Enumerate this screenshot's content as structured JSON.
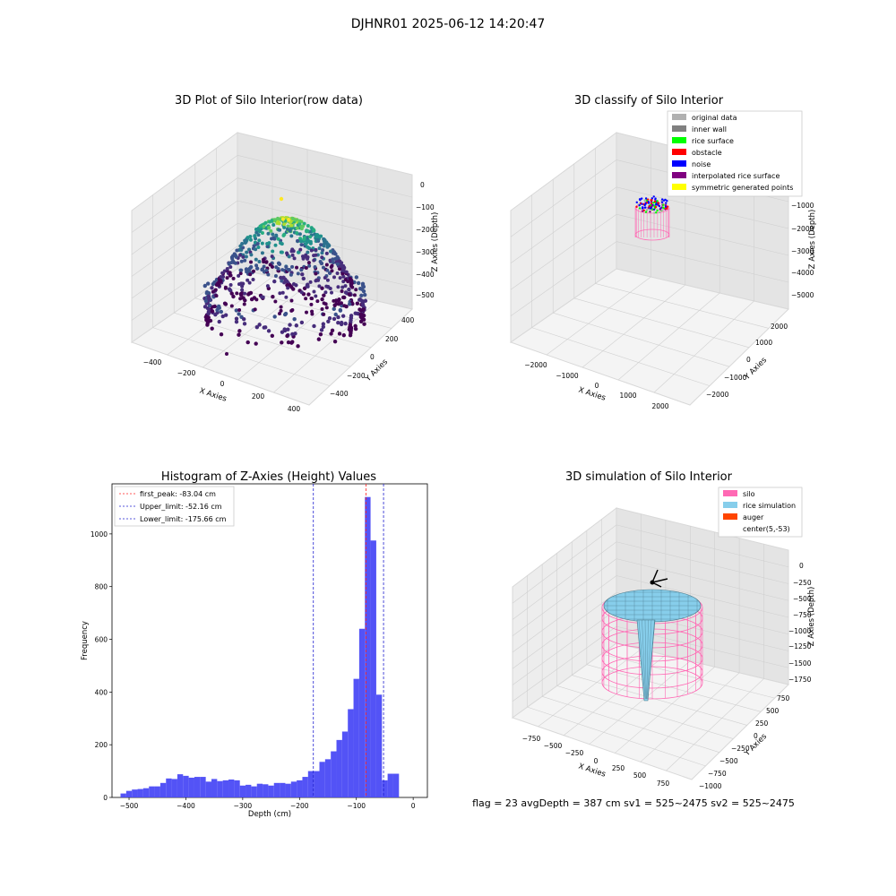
{
  "figure_title": "DJHNR01 2025-06-12 14:20:47",
  "footer_text": "flag = 23  avgDepth = 387 cm  sv1 = 525~2475  sv2 = 525~2475",
  "colors": {
    "hist_bar": "#4a4af5",
    "first_peak_line": "#ff2020",
    "limit_line": "#2020d0",
    "silo": "#ff69b4",
    "rice_simulation": "#87ceeb",
    "auger": "#ff4500",
    "pane": "#f2f2f2"
  },
  "chart_data": [
    {
      "type": "scatter",
      "subtype": "3d-scatter",
      "title": "3D Plot of Silo Interior(row data)",
      "xlabel": "X Axies",
      "ylabel": "Y Axies",
      "zlabel": "Z Axies (Depth)",
      "x_ticks": [
        "−400",
        "−200",
        "0",
        "200",
        "400"
      ],
      "y_ticks": [
        "−400",
        "−200",
        "0",
        "200",
        "400"
      ],
      "z_ticks": [
        "0",
        "−100",
        "−200",
        "−300",
        "−400",
        "−500"
      ],
      "xlim": [
        -500,
        500
      ],
      "ylim": [
        -500,
        500
      ],
      "zlim": [
        -550,
        20
      ],
      "colormap": "viridis",
      "grid": true
    },
    {
      "type": "scatter",
      "subtype": "3d-scatter",
      "title": "3D classify of Silo Interior",
      "xlabel": "X Axies",
      "ylabel": "Y Axies",
      "zlabel": "Z Axies (Depth)",
      "x_ticks": [
        "−2000",
        "−1000",
        "0",
        "1000",
        "2000"
      ],
      "y_ticks": [
        "−2000",
        "−1000",
        "0",
        "1000",
        "2000"
      ],
      "z_ticks": [
        "−1000",
        "−2000",
        "−3000",
        "−4000",
        "−5000"
      ],
      "legend": [
        {
          "label": "original data",
          "color": "#b0b0b0"
        },
        {
          "label": "inner wall",
          "color": "#808080"
        },
        {
          "label": "rice surface",
          "color": "#00ff00"
        },
        {
          "label": "obstacle",
          "color": "#ff0000"
        },
        {
          "label": "noise",
          "color": "#0000ff"
        },
        {
          "label": "interpolated rice surface",
          "color": "#800080"
        },
        {
          "label": "symmetric generated points",
          "color": "#ffff00"
        }
      ],
      "legend_position": "top-right",
      "grid": true
    },
    {
      "type": "bar",
      "subtype": "histogram",
      "title": "Histogram of Z-Axies (Height) Values",
      "xlabel": "Depth (cm)",
      "ylabel": "Frequency",
      "xlim": [
        -530,
        25
      ],
      "ylim": [
        0,
        1190
      ],
      "x_ticks": [
        -500,
        -400,
        -300,
        -200,
        -100,
        0
      ],
      "y_ticks": [
        0,
        200,
        400,
        600,
        800,
        1000
      ],
      "bin_start": -515,
      "bin_width": 10,
      "values": [
        15,
        25,
        30,
        32,
        35,
        42,
        42,
        55,
        72,
        70,
        88,
        82,
        75,
        78,
        78,
        60,
        70,
        62,
        65,
        68,
        65,
        45,
        48,
        42,
        52,
        50,
        45,
        55,
        55,
        52,
        60,
        65,
        78,
        100,
        100,
        135,
        145,
        175,
        218,
        250,
        335,
        450,
        640,
        1140,
        975,
        390,
        65,
        90,
        90
      ],
      "reference_lines": [
        {
          "label": "first_peak: -83.04 cm",
          "x": -83.04,
          "style": "red-dashed"
        },
        {
          "label": "Upper_limit: -52.16 cm",
          "x": -52.16,
          "style": "blue-dashed"
        },
        {
          "label": "Lower_limit: -175.66 cm",
          "x": -175.66,
          "style": "blue-dashed"
        }
      ],
      "legend_position": "top-left"
    },
    {
      "type": "area",
      "subtype": "3d-surface",
      "title": "3D simulation of Silo Interior",
      "xlabel": "X Axies",
      "ylabel": "Y Axies",
      "zlabel": "Z Axies (Depth)",
      "x_ticks": [
        "−750",
        "−500",
        "−250",
        "0",
        "250",
        "500",
        "750"
      ],
      "y_ticks": [
        "−1000",
        "−750",
        "−500",
        "−250",
        "0",
        "250",
        "500",
        "750"
      ],
      "z_ticks": [
        "0",
        "−250",
        "−500",
        "−750",
        "−1000",
        "−1250",
        "−1500",
        "−1750"
      ],
      "legend": [
        {
          "label": "silo",
          "color": "#ff69b4"
        },
        {
          "label": "rice simulation",
          "color": "#87ceeb"
        },
        {
          "label": "auger",
          "color": "#ff4500"
        },
        {
          "label": "center(5,-53)",
          "color": ""
        }
      ],
      "legend_position": "top-right",
      "grid": true
    }
  ]
}
